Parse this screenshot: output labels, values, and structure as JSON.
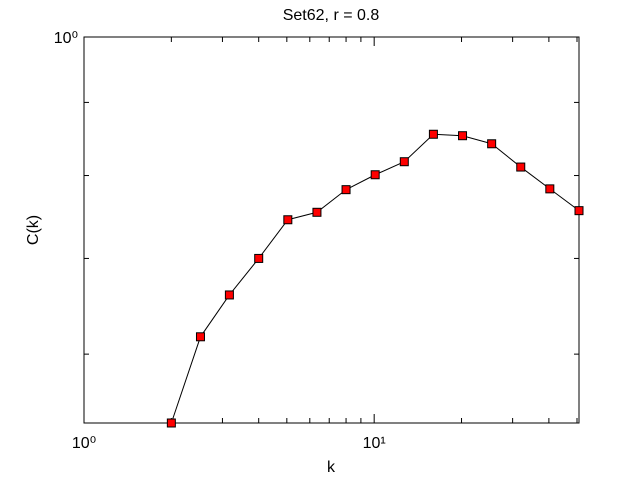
{
  "chart_data": {
    "type": "line",
    "title": "Set62, r = 0.8",
    "xlabel": "k",
    "ylabel": "C(k)",
    "xscale": "log",
    "yscale": "log",
    "xlim": [
      1,
      50.8
    ],
    "ylim": [
      0.537,
      1
    ],
    "xticks": [
      {
        "value": 1,
        "label": "10⁰"
      },
      {
        "value": 10,
        "label": "10¹"
      }
    ],
    "x_minor_ticks": [
      2,
      3,
      4,
      5,
      6,
      7,
      8,
      9,
      20,
      30,
      40,
      50
    ],
    "yticks": [
      {
        "value": 1,
        "label": "10⁰"
      }
    ],
    "y_minor_ticks": [
      0.6,
      0.7,
      0.8,
      0.9
    ],
    "series": [
      {
        "color": "#ff0000",
        "line_color": "#000000",
        "x": [
          2,
          2.52,
          3.17,
          4,
          5.04,
          6.35,
          8,
          10.08,
          12.7,
          16,
          20.16,
          25.4,
          32,
          40.3,
          50.8
        ],
        "values": [
          0.537,
          0.617,
          0.66,
          0.7,
          0.745,
          0.754,
          0.782,
          0.801,
          0.818,
          0.855,
          0.853,
          0.842,
          0.811,
          0.783,
          0.756
        ]
      }
    ]
  }
}
